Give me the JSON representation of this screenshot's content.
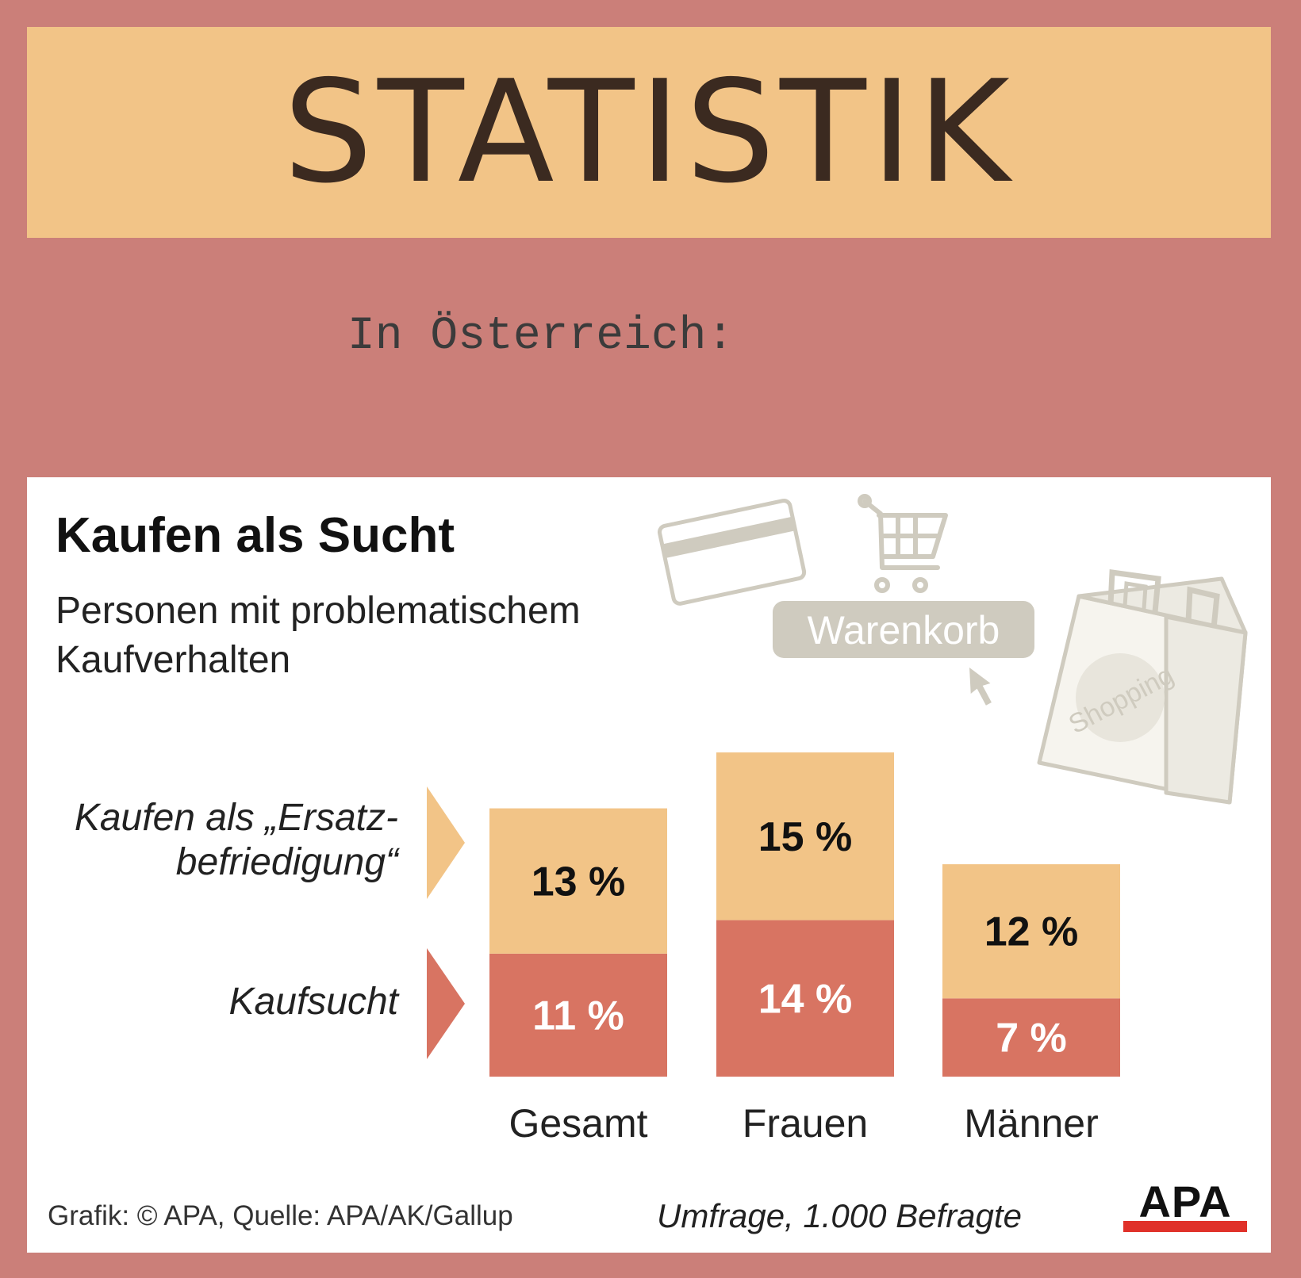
{
  "banner": {
    "title": "STATISTIK"
  },
  "subtitle": "In Österreich:",
  "illustration": {
    "cart_label": "Warenkorb",
    "bag_label": "Shopping",
    "icons": [
      "credit-card-icon",
      "shopping-cart-icon",
      "cursor-arrow-icon",
      "shopping-bag-icon"
    ]
  },
  "colors": {
    "background": "#cb7f79",
    "banner": "#f2c487",
    "ersatz": "#f2c487",
    "kaufsucht": "#d87462",
    "icon_gray": "#cfcbbf",
    "logo_red": "#e0312a"
  },
  "chart_data": {
    "type": "bar",
    "stacked": true,
    "title": "Kaufen als Sucht",
    "subtitle": "Personen mit problematischem Kaufverhalten",
    "categories": [
      "Gesamt",
      "Frauen",
      "Männer"
    ],
    "series": [
      {
        "name": "Kaufsucht",
        "values": [
          11,
          14,
          7
        ],
        "labels": [
          "11 %",
          "14 %",
          "7 %"
        ],
        "color": "#d87462"
      },
      {
        "name": "Kaufen als „Ersatz-befriedigung“",
        "values": [
          13,
          15,
          12
        ],
        "labels": [
          "13 %",
          "15 %",
          "12 %"
        ],
        "color": "#f2c487"
      }
    ],
    "legend_lines": {
      "ersatz": [
        "Kaufen als „Ersatz-",
        "befriedigung“"
      ],
      "kaufsucht": [
        "Kaufsucht"
      ]
    },
    "unit": "%"
  },
  "footer": {
    "source": "Grafik: © APA, Quelle: APA/AK/Gallup",
    "note": "Umfrage, 1.000 Befragte",
    "logo": "APA"
  }
}
